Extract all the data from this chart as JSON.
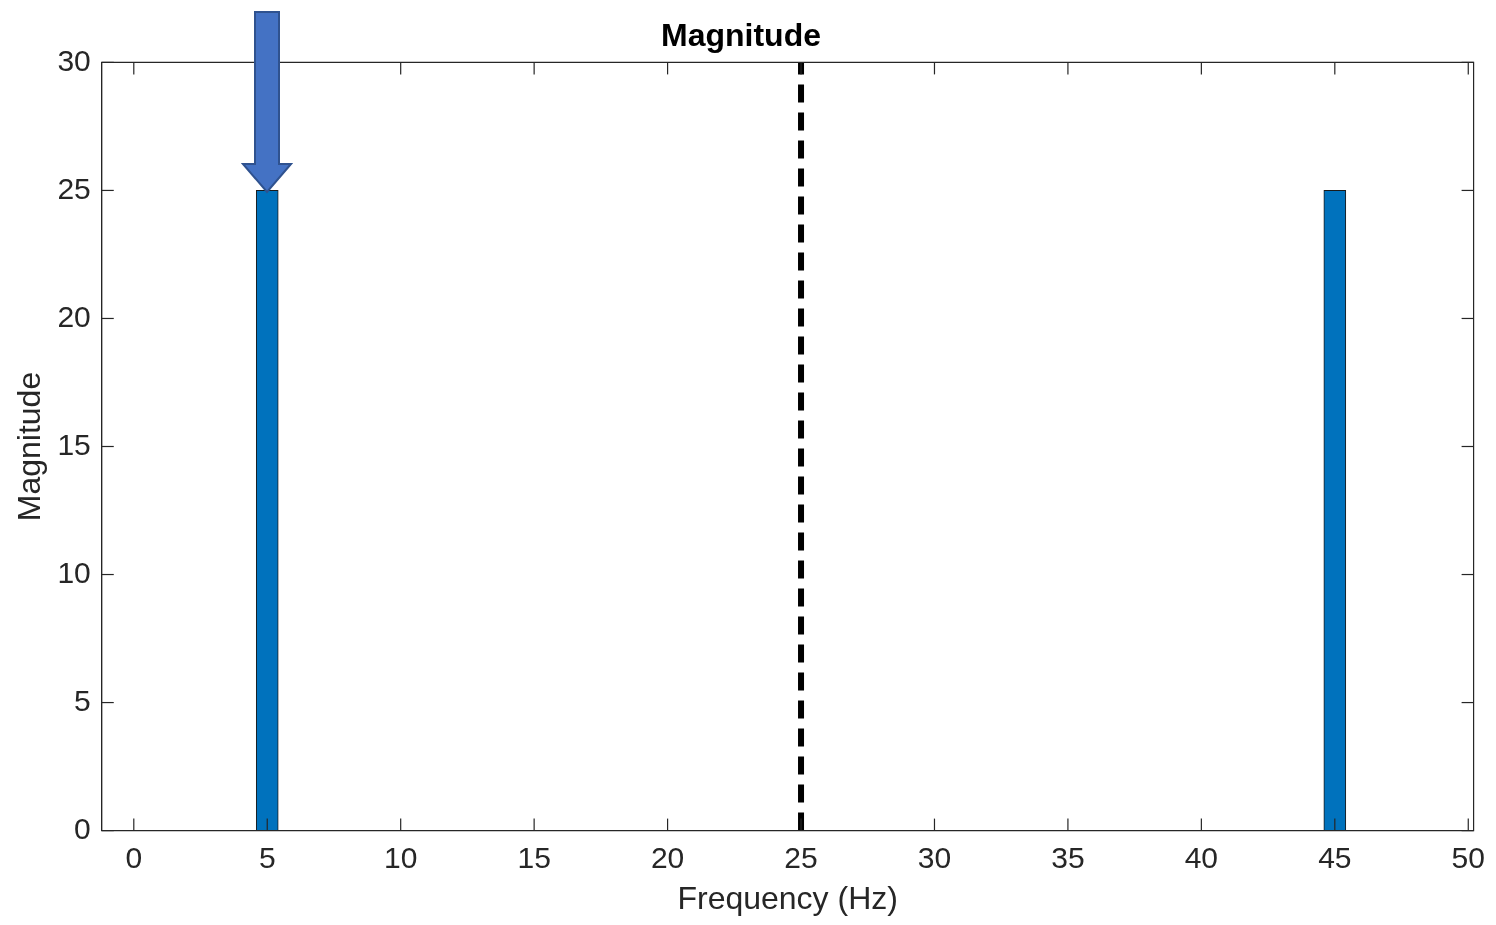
{
  "chart_data": {
    "type": "bar",
    "title": "Magnitude",
    "xlabel": "Frequency (Hz)",
    "ylabel": "Magnitude",
    "x": [
      5,
      45
    ],
    "values": [
      25,
      25
    ],
    "color": "#0072bd",
    "xlim": [
      -1.2,
      50.2
    ],
    "xticks": [
      0,
      5,
      10,
      15,
      20,
      25,
      30,
      35,
      40,
      45,
      50
    ],
    "ylim": [
      0,
      30
    ],
    "yticks": [
      0,
      5,
      10,
      15,
      20,
      25,
      30
    ],
    "ref_lines": [
      {
        "axis": "x",
        "value": 25,
        "color": "#000000",
        "line_style": "dashed"
      }
    ],
    "grid": false,
    "legend": false
  }
}
